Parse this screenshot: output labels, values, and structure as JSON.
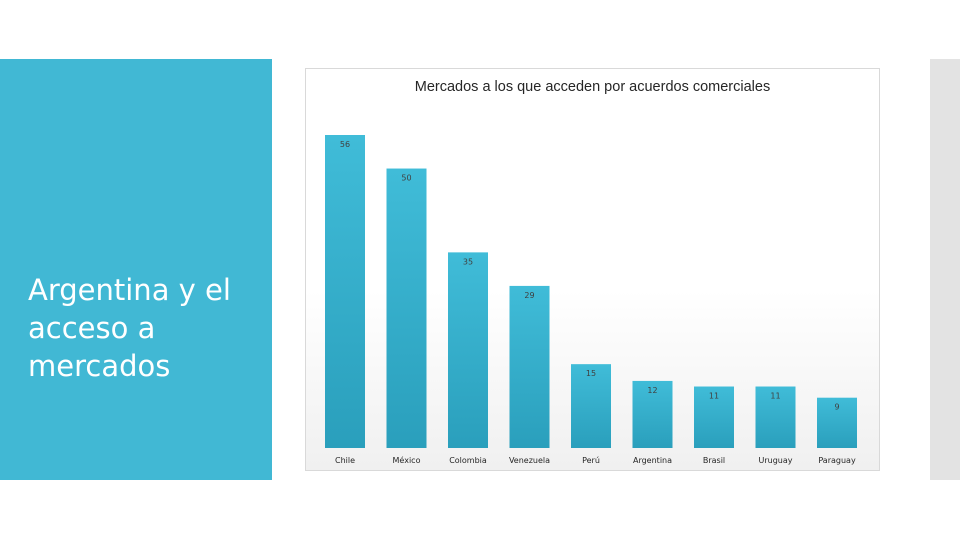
{
  "slide": {
    "title": "Argentina y el acceso a mercados"
  },
  "colors": {
    "panel": "#41b8d4",
    "bar_top": "#40bcd8",
    "bar_bottom": "#2a9fbc"
  },
  "chart_data": {
    "type": "bar",
    "title": "Mercados a los que acceden por acuerdos comerciales",
    "xlabel": "",
    "ylabel": "",
    "categories": [
      "Chile",
      "México",
      "Colombia",
      "Venezuela",
      "Perú",
      "Argentina",
      "Brasil",
      "Uruguay",
      "Paraguay"
    ],
    "values": [
      56,
      50,
      35,
      29,
      15,
      12,
      11,
      11,
      9
    ],
    "ylim": [
      0,
      56
    ],
    "grid": false,
    "legend": "none"
  }
}
